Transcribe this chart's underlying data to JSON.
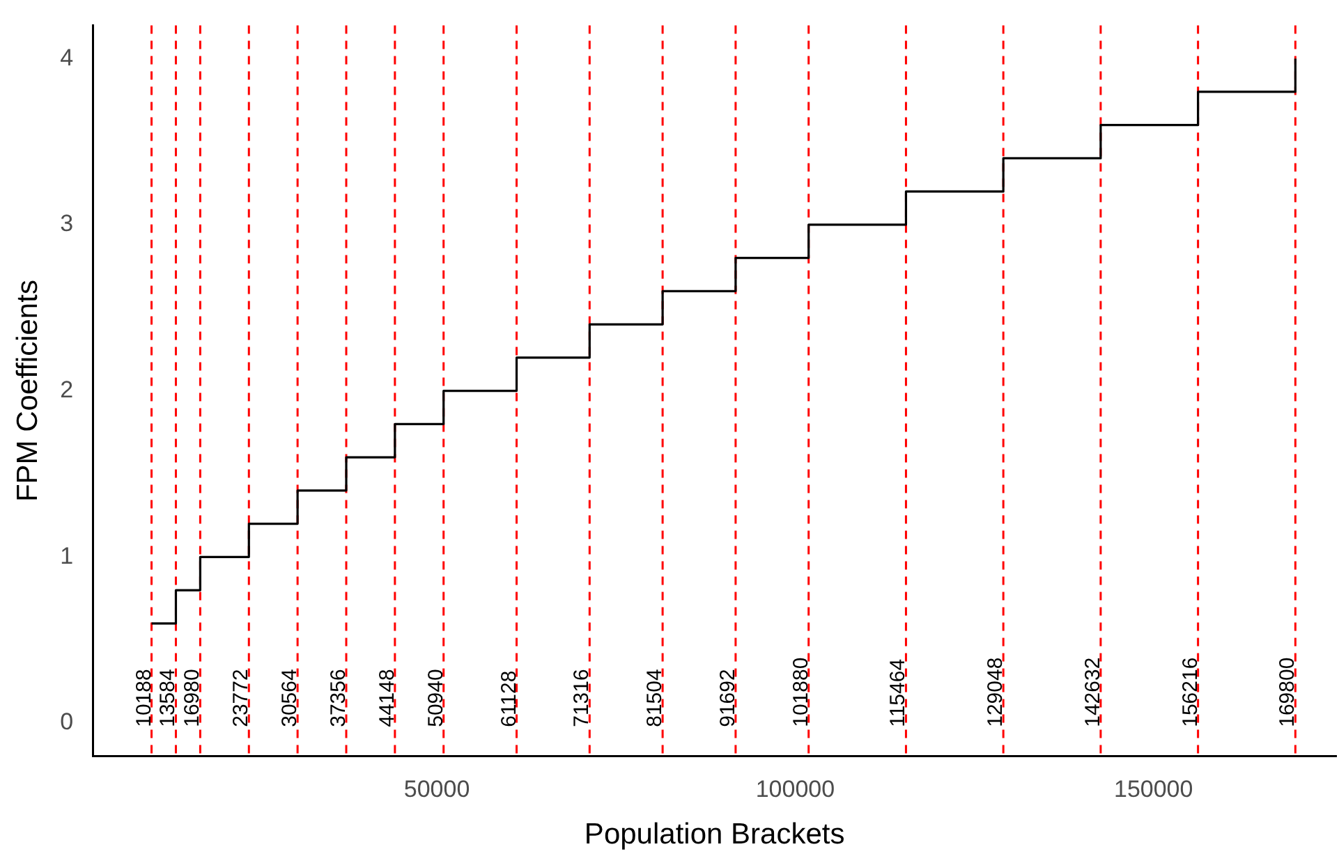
{
  "chart_data": {
    "type": "step",
    "xlabel": "Population Brackets",
    "ylabel": "FPM Coefficients",
    "x": [
      10188,
      13584,
      16980,
      23772,
      30564,
      37356,
      44148,
      50940,
      61128,
      71316,
      81504,
      91692,
      101880,
      115464,
      129048,
      142632,
      156216,
      169800
    ],
    "series": [
      {
        "color": "#000000",
        "values": [
          0.6,
          0.8,
          1.0,
          1.2,
          1.4,
          1.6,
          1.8,
          2.0,
          2.2,
          2.4,
          2.6,
          2.8,
          3.0,
          3.2,
          3.4,
          3.6,
          3.8,
          4.0
        ]
      }
    ],
    "xlim": [
      2000,
      175500
    ],
    "xticks": [
      50000,
      100000,
      150000
    ],
    "ylim": [
      -0.2,
      4.2
    ],
    "yticks": [
      0,
      1,
      2,
      3,
      4
    ],
    "ref_lines": [
      {
        "axis": "x",
        "value": 10188,
        "label": "10188",
        "color": "#ff0000",
        "line_style": "dashed"
      },
      {
        "axis": "x",
        "value": 13584,
        "label": "13584",
        "color": "#ff0000",
        "line_style": "dashed"
      },
      {
        "axis": "x",
        "value": 16980,
        "label": "16980",
        "color": "#ff0000",
        "line_style": "dashed"
      },
      {
        "axis": "x",
        "value": 23772,
        "label": "23772",
        "color": "#ff0000",
        "line_style": "dashed"
      },
      {
        "axis": "x",
        "value": 30564,
        "label": "30564",
        "color": "#ff0000",
        "line_style": "dashed"
      },
      {
        "axis": "x",
        "value": 37356,
        "label": "37356",
        "color": "#ff0000",
        "line_style": "dashed"
      },
      {
        "axis": "x",
        "value": 44148,
        "label": "44148",
        "color": "#ff0000",
        "line_style": "dashed"
      },
      {
        "axis": "x",
        "value": 50940,
        "label": "50940",
        "color": "#ff0000",
        "line_style": "dashed"
      },
      {
        "axis": "x",
        "value": 61128,
        "label": "61128",
        "color": "#ff0000",
        "line_style": "dashed"
      },
      {
        "axis": "x",
        "value": 71316,
        "label": "71316",
        "color": "#ff0000",
        "line_style": "dashed"
      },
      {
        "axis": "x",
        "value": 81504,
        "label": "81504",
        "color": "#ff0000",
        "line_style": "dashed"
      },
      {
        "axis": "x",
        "value": 91692,
        "label": "91692",
        "color": "#ff0000",
        "line_style": "dashed"
      },
      {
        "axis": "x",
        "value": 101880,
        "label": "101880",
        "color": "#ff0000",
        "line_style": "dashed"
      },
      {
        "axis": "x",
        "value": 115464,
        "label": "115464",
        "color": "#ff0000",
        "line_style": "dashed"
      },
      {
        "axis": "x",
        "value": 129048,
        "label": "129048",
        "color": "#ff0000",
        "line_style": "dashed"
      },
      {
        "axis": "x",
        "value": 142632,
        "label": "142632",
        "color": "#ff0000",
        "line_style": "dashed"
      },
      {
        "axis": "x",
        "value": 156216,
        "label": "156216",
        "color": "#ff0000",
        "line_style": "dashed"
      },
      {
        "axis": "x",
        "value": 169800,
        "label": "169800",
        "color": "#ff0000",
        "line_style": "dashed"
      }
    ],
    "grid": false,
    "legend": false
  }
}
